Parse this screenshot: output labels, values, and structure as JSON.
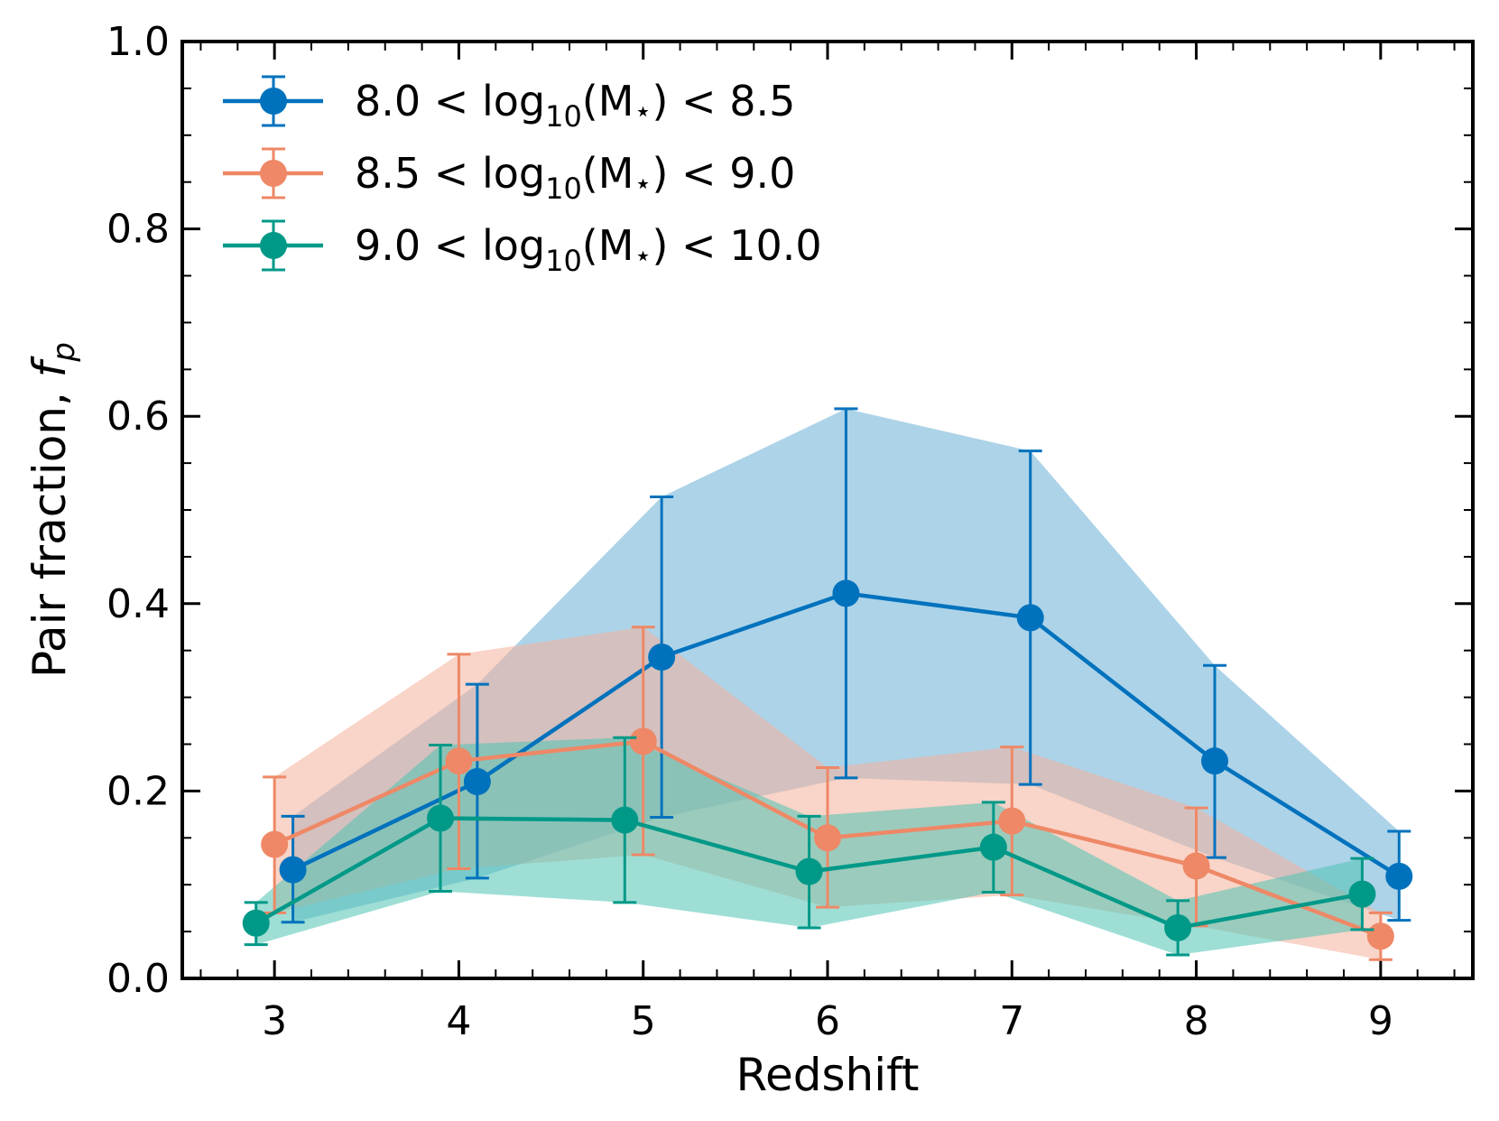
{
  "chart_data": {
    "type": "line",
    "xlabel": "Redshift",
    "ylabel": "Pair fraction, ",
    "ylabel_symbol": "f",
    "ylabel_subscript": "p",
    "xlim": [
      2.5,
      9.5
    ],
    "ylim": [
      0.0,
      1.0
    ],
    "xticks": [
      "3",
      "4",
      "5",
      "6",
      "7",
      "8",
      "9"
    ],
    "yticks": [
      "0.0",
      "0.2",
      "0.4",
      "0.6",
      "0.8",
      "1.0"
    ],
    "legend_position": "top-left",
    "series": [
      {
        "name": "8.0 < log10(M*) < 8.5",
        "label_pre": "8.0 < log",
        "label_sub": "10",
        "label_mid": "(M",
        "label_star": "⋆",
        "label_post": ") < 8.5",
        "color": "#0072bd",
        "fill_color": "#6aaed6",
        "x": [
          3.1,
          4.1,
          5.1,
          6.1,
          7.1,
          8.1,
          9.1
        ],
        "y": [
          0.116,
          0.21,
          0.343,
          0.411,
          0.385,
          0.232,
          0.109
        ],
        "y_low": [
          0.06,
          0.107,
          0.172,
          0.214,
          0.207,
          0.129,
          0.062
        ],
        "y_high": [
          0.173,
          0.314,
          0.514,
          0.608,
          0.563,
          0.334,
          0.157
        ]
      },
      {
        "name": "8.5 < log10(M*) < 9.0",
        "label_pre": "8.5 < log",
        "label_sub": "10",
        "label_mid": "(M",
        "label_star": "⋆",
        "label_post": ") < 9.0",
        "color": "#ee8866",
        "fill_color": "#f4b09a",
        "x": [
          3.0,
          4.0,
          5.0,
          6.0,
          7.0,
          8.0,
          9.0
        ],
        "y": [
          0.143,
          0.232,
          0.253,
          0.15,
          0.168,
          0.12,
          0.045
        ],
        "y_low": [
          0.07,
          0.117,
          0.132,
          0.076,
          0.089,
          0.056,
          0.02
        ],
        "y_high": [
          0.215,
          0.346,
          0.375,
          0.225,
          0.247,
          0.182,
          0.07
        ]
      },
      {
        "name": "9.0 < log10(M*) < 10.0",
        "label_pre": "9.0 < log",
        "label_sub": "10",
        "label_mid": "(M",
        "label_star": "⋆",
        "label_post": ") < 10.0",
        "color": "#009988",
        "fill_color": "#4fc2b3",
        "x": [
          2.9,
          3.9,
          4.9,
          5.9,
          6.9,
          7.9,
          8.9
        ],
        "y": [
          0.059,
          0.171,
          0.169,
          0.114,
          0.14,
          0.054,
          0.09
        ],
        "y_low": [
          0.036,
          0.093,
          0.081,
          0.054,
          0.092,
          0.025,
          0.052
        ],
        "y_high": [
          0.081,
          0.249,
          0.257,
          0.173,
          0.188,
          0.083,
          0.128
        ]
      }
    ]
  }
}
